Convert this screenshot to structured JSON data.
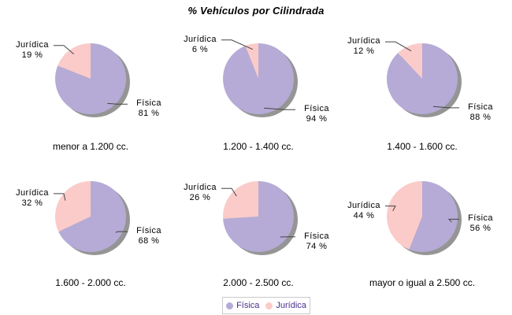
{
  "chart_data": {
    "type": "pie",
    "title": "% Vehículos por Cilindrada",
    "series_names": [
      "Física",
      "Jurídica"
    ],
    "colors": {
      "fisica": "#b5abd6",
      "juridica": "#fbcbc9"
    },
    "shadow_color": "#959595",
    "line_color": "#444444",
    "legend": {
      "position": "bottom",
      "items": [
        {
          "label": "Física",
          "color": "#b5abd6"
        },
        {
          "label": "Jurídica",
          "color": "#fbcbc9"
        }
      ]
    },
    "pies": [
      {
        "caption": "menor a 1.200 cc.",
        "fisica": {
          "label": "Física",
          "value": 81,
          "value_label": "81 %"
        },
        "juridica": {
          "label": "Jurídica",
          "value": 19,
          "value_label": "19 %"
        }
      },
      {
        "caption": "1.200 - 1.400 cc.",
        "fisica": {
          "label": "Física",
          "value": 94,
          "value_label": "94 %"
        },
        "juridica": {
          "label": "Jurídica",
          "value": 6,
          "value_label": "6 %"
        }
      },
      {
        "caption": "1.400 - 1.600 cc.",
        "fisica": {
          "label": "Física",
          "value": 88,
          "value_label": "88 %"
        },
        "juridica": {
          "label": "Jurídica",
          "value": 12,
          "value_label": "12 %"
        }
      },
      {
        "caption": "1.600 - 2.000 cc.",
        "fisica": {
          "label": "Física",
          "value": 68,
          "value_label": "68 %"
        },
        "juridica": {
          "label": "Jurídica",
          "value": 32,
          "value_label": "32 %"
        }
      },
      {
        "caption": "2.000 - 2.500 cc.",
        "fisica": {
          "label": "Física",
          "value": 74,
          "value_label": "74 %"
        },
        "juridica": {
          "label": "Jurídica",
          "value": 26,
          "value_label": "26 %"
        }
      },
      {
        "caption": "mayor o igual a 2.500 cc.",
        "fisica": {
          "label": "Física",
          "value": 56,
          "value_label": "56 %"
        },
        "juridica": {
          "label": "Jurídica",
          "value": 44,
          "value_label": "44 %"
        }
      }
    ]
  }
}
